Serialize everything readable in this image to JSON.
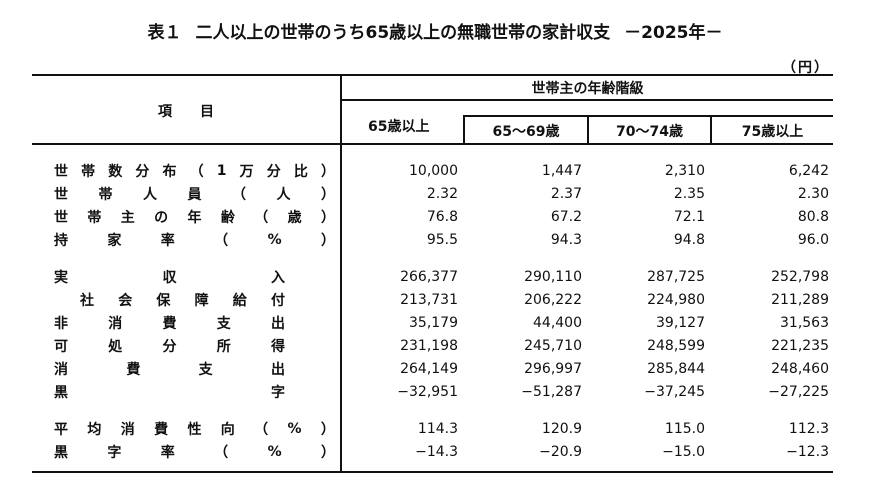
{
  "title": {
    "table_no": "表１",
    "text": "二人以上の世帯のうち65歳以上の無職世帯の家計収支",
    "year": "－2025年－"
  },
  "unit": "（円）",
  "header": {
    "item": "項　　目",
    "group": "世帯主の年齢階級",
    "columns": [
      "65歳以上",
      "65～69歳",
      "70～74歳",
      "75歳以上"
    ]
  },
  "rows": [
    {
      "label": [
        "世",
        "帯",
        "数",
        "分",
        "布",
        "（",
        "1",
        "万",
        "分",
        "比",
        "）"
      ],
      "values": [
        "10,000",
        "1,447",
        "2,310",
        "6,242"
      ]
    },
    {
      "label": [
        "世",
        "帯",
        "人",
        "員",
        "（",
        "人",
        "）"
      ],
      "values": [
        "2.32",
        "2.37",
        "2.35",
        "2.30"
      ]
    },
    {
      "label": [
        "世",
        "帯",
        "主",
        "の",
        "年",
        "齢",
        "（",
        "歳",
        "）"
      ],
      "values": [
        "76.8",
        "67.2",
        "72.1",
        "80.8"
      ]
    },
    {
      "label": [
        "持",
        "家",
        "率",
        "（",
        "%",
        "）"
      ],
      "values": [
        "95.5",
        "94.3",
        "94.8",
        "96.0"
      ]
    },
    {
      "label": [
        "実",
        "収",
        "入"
      ],
      "values": [
        "266,377",
        "290,110",
        "287,725",
        "252,798"
      ]
    },
    {
      "label": [
        "社",
        "会",
        "保",
        "障",
        "給",
        "付"
      ],
      "values": [
        "213,731",
        "206,222",
        "224,980",
        "211,289"
      ]
    },
    {
      "label": [
        "非",
        "消",
        "費",
        "支",
        "出"
      ],
      "values": [
        "35,179",
        "44,400",
        "39,127",
        "31,563"
      ]
    },
    {
      "label": [
        "可",
        "処",
        "分",
        "所",
        "得"
      ],
      "values": [
        "231,198",
        "245,710",
        "248,599",
        "221,235"
      ]
    },
    {
      "label": [
        "消",
        "費",
        "支",
        "出"
      ],
      "values": [
        "264,149",
        "296,997",
        "285,844",
        "248,460"
      ]
    },
    {
      "label": [
        "黒",
        "字"
      ],
      "values": [
        "−32,951",
        "−51,287",
        "−37,245",
        "−27,225"
      ]
    },
    {
      "label": [
        "平",
        "均",
        "消",
        "費",
        "性",
        "向",
        "（",
        "%",
        "）"
      ],
      "values": [
        "114.3",
        "120.9",
        "115.0",
        "112.3"
      ]
    },
    {
      "label": [
        "黒",
        "字",
        "率",
        "（",
        "%",
        "）"
      ],
      "values": [
        "−14.3",
        "−20.9",
        "−15.0",
        "−12.3"
      ]
    }
  ]
}
